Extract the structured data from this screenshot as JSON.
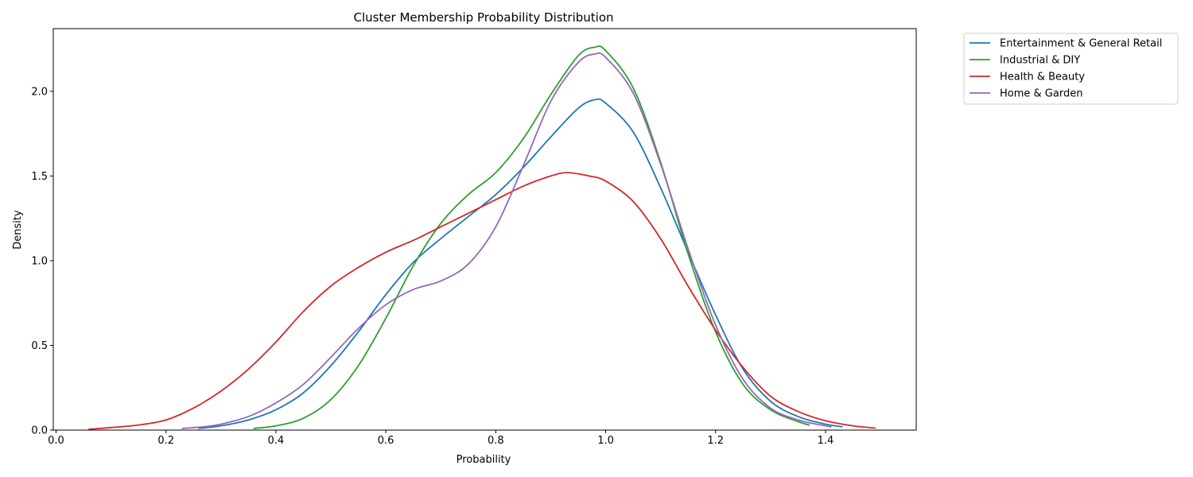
{
  "chart_data": {
    "type": "line",
    "title": "Cluster Membership Probability Distribution",
    "xlabel": "Probability",
    "ylabel": "Density",
    "xlim": [
      -0.005,
      1.565
    ],
    "ylim": [
      0,
      2.37
    ],
    "xticks": [
      0.0,
      0.2,
      0.4,
      0.6,
      0.8,
      1.0,
      1.2,
      1.4
    ],
    "xtick_labels": [
      "0.0",
      "0.2",
      "0.4",
      "0.6",
      "0.8",
      "1.0",
      "1.2",
      "1.4"
    ],
    "yticks": [
      0.0,
      0.5,
      1.0,
      1.5,
      2.0
    ],
    "ytick_labels": [
      "0.0",
      "0.5",
      "1.0",
      "1.5",
      "2.0"
    ],
    "grid": false,
    "legend_position": "outside-top-right",
    "series": [
      {
        "name": "Entertainment & General Retail",
        "color": "#1f77b4",
        "points": [
          [
            0.26,
            0.01
          ],
          [
            0.3,
            0.025
          ],
          [
            0.35,
            0.06
          ],
          [
            0.4,
            0.12
          ],
          [
            0.45,
            0.22
          ],
          [
            0.5,
            0.38
          ],
          [
            0.55,
            0.58
          ],
          [
            0.6,
            0.8
          ],
          [
            0.65,
            0.99
          ],
          [
            0.7,
            1.13
          ],
          [
            0.75,
            1.26
          ],
          [
            0.8,
            1.39
          ],
          [
            0.85,
            1.55
          ],
          [
            0.9,
            1.73
          ],
          [
            0.95,
            1.9
          ],
          [
            0.98,
            1.95
          ],
          [
            1.0,
            1.93
          ],
          [
            1.05,
            1.76
          ],
          [
            1.1,
            1.43
          ],
          [
            1.15,
            1.05
          ],
          [
            1.2,
            0.68
          ],
          [
            1.25,
            0.36
          ],
          [
            1.3,
            0.17
          ],
          [
            1.35,
            0.08
          ],
          [
            1.4,
            0.035
          ],
          [
            1.43,
            0.02
          ]
        ]
      },
      {
        "name": "Industrial & DIY",
        "color": "#2ca02c",
        "points": [
          [
            0.36,
            0.01
          ],
          [
            0.4,
            0.025
          ],
          [
            0.45,
            0.07
          ],
          [
            0.5,
            0.18
          ],
          [
            0.55,
            0.38
          ],
          [
            0.6,
            0.66
          ],
          [
            0.65,
            0.97
          ],
          [
            0.7,
            1.22
          ],
          [
            0.75,
            1.39
          ],
          [
            0.8,
            1.52
          ],
          [
            0.85,
            1.72
          ],
          [
            0.9,
            1.98
          ],
          [
            0.95,
            2.21
          ],
          [
            0.98,
            2.26
          ],
          [
            1.0,
            2.24
          ],
          [
            1.05,
            2.02
          ],
          [
            1.1,
            1.58
          ],
          [
            1.15,
            1.04
          ],
          [
            1.2,
            0.58
          ],
          [
            1.25,
            0.27
          ],
          [
            1.3,
            0.12
          ],
          [
            1.35,
            0.05
          ],
          [
            1.37,
            0.03
          ]
        ]
      },
      {
        "name": "Health & Beauty",
        "color": "#d62728",
        "points": [
          [
            0.06,
            0.005
          ],
          [
            0.1,
            0.015
          ],
          [
            0.15,
            0.03
          ],
          [
            0.2,
            0.06
          ],
          [
            0.25,
            0.13
          ],
          [
            0.3,
            0.23
          ],
          [
            0.35,
            0.36
          ],
          [
            0.4,
            0.52
          ],
          [
            0.45,
            0.7
          ],
          [
            0.5,
            0.85
          ],
          [
            0.55,
            0.96
          ],
          [
            0.6,
            1.05
          ],
          [
            0.65,
            1.12
          ],
          [
            0.7,
            1.2
          ],
          [
            0.75,
            1.28
          ],
          [
            0.8,
            1.36
          ],
          [
            0.85,
            1.44
          ],
          [
            0.9,
            1.5
          ],
          [
            0.93,
            1.52
          ],
          [
            0.97,
            1.5
          ],
          [
            1.0,
            1.47
          ],
          [
            1.05,
            1.35
          ],
          [
            1.1,
            1.13
          ],
          [
            1.15,
            0.85
          ],
          [
            1.2,
            0.59
          ],
          [
            1.25,
            0.37
          ],
          [
            1.3,
            0.2
          ],
          [
            1.35,
            0.11
          ],
          [
            1.4,
            0.055
          ],
          [
            1.45,
            0.025
          ],
          [
            1.49,
            0.012
          ]
        ]
      },
      {
        "name": "Home & Garden",
        "color": "#9467bd",
        "points": [
          [
            0.23,
            0.01
          ],
          [
            0.27,
            0.02
          ],
          [
            0.3,
            0.035
          ],
          [
            0.35,
            0.08
          ],
          [
            0.4,
            0.16
          ],
          [
            0.45,
            0.27
          ],
          [
            0.5,
            0.43
          ],
          [
            0.55,
            0.6
          ],
          [
            0.6,
            0.74
          ],
          [
            0.65,
            0.83
          ],
          [
            0.7,
            0.88
          ],
          [
            0.75,
            0.98
          ],
          [
            0.8,
            1.2
          ],
          [
            0.85,
            1.56
          ],
          [
            0.9,
            1.94
          ],
          [
            0.95,
            2.17
          ],
          [
            0.98,
            2.22
          ],
          [
            1.0,
            2.2
          ],
          [
            1.05,
            1.99
          ],
          [
            1.1,
            1.57
          ],
          [
            1.15,
            1.07
          ],
          [
            1.2,
            0.62
          ],
          [
            1.25,
            0.3
          ],
          [
            1.3,
            0.13
          ],
          [
            1.35,
            0.06
          ],
          [
            1.4,
            0.025
          ],
          [
            1.41,
            0.02
          ]
        ]
      }
    ]
  }
}
